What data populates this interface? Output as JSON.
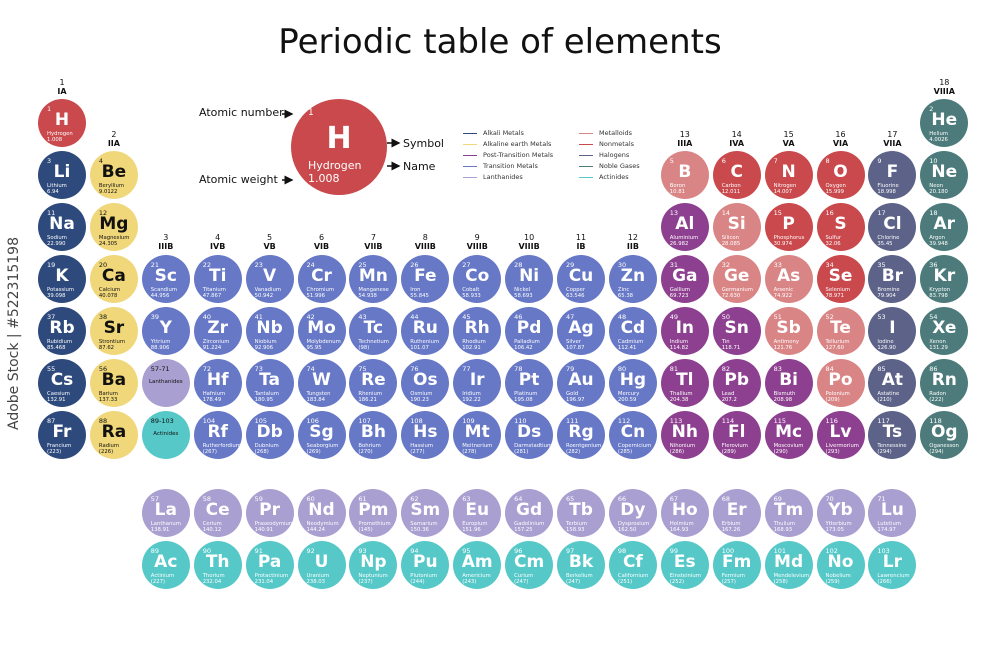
{
  "title": "Periodic table of elements",
  "watermark": "Adobe Stock | #522315198",
  "colors": {
    "alkali": "#2e4a7d",
    "alkaline": "#f0d77a",
    "post": "#8e4090",
    "transition": "#6678c6",
    "lanthanide": "#a99fd0",
    "actinide": "#56c8c8",
    "metalloid": "#da8585",
    "nonmetal": "#c9494d",
    "halogen": "#5c6288",
    "noble": "#4d7b7b"
  },
  "key": {
    "atomic_number_label": "Atomic number",
    "atomic_weight_label": "Atomic weight",
    "symbol_label": "Symbol",
    "name_label": "Name",
    "number": "1",
    "symbol": "H",
    "name": "Hydrogen",
    "weight": "1.008"
  },
  "legend": [
    {
      "label": "Alkali Metals",
      "color": "#2e4a7d"
    },
    {
      "label": "Alkaline earth Metals",
      "color": "#f0d77a"
    },
    {
      "label": "Post-Transition Metals",
      "color": "#8e4090"
    },
    {
      "label": "Transition Metals",
      "color": "#6678c6"
    },
    {
      "label": "Lanthanides",
      "color": "#a99fd0"
    },
    {
      "label": "Metalloids",
      "color": "#da8585"
    },
    {
      "label": "Nonmetals",
      "color": "#c9494d"
    },
    {
      "label": "Halogens",
      "color": "#5c6288"
    },
    {
      "label": "Noble Gases",
      "color": "#4d7b7b"
    },
    {
      "label": "Actinides",
      "color": "#56c8c8"
    }
  ],
  "groups": [
    {
      "num": "1",
      "roman": "IA"
    },
    {
      "num": "2",
      "roman": "IIA"
    },
    {
      "num": "3",
      "roman": "IIIB"
    },
    {
      "num": "4",
      "roman": "IVB"
    },
    {
      "num": "5",
      "roman": "VB"
    },
    {
      "num": "6",
      "roman": "VIB"
    },
    {
      "num": "7",
      "roman": "VIIB"
    },
    {
      "num": "8",
      "roman": "VIIIB"
    },
    {
      "num": "9",
      "roman": "VIIIB"
    },
    {
      "num": "10",
      "roman": "VIIIB"
    },
    {
      "num": "11",
      "roman": "IB"
    },
    {
      "num": "12",
      "roman": "IIB"
    },
    {
      "num": "13",
      "roman": "IIIA"
    },
    {
      "num": "14",
      "roman": "IVA"
    },
    {
      "num": "15",
      "roman": "VA"
    },
    {
      "num": "16",
      "roman": "VIA"
    },
    {
      "num": "17",
      "roman": "VIIA"
    },
    {
      "num": "18",
      "roman": "VIIIA"
    }
  ],
  "elements": [
    {
      "n": "1",
      "s": "H",
      "name": "Hydrogen",
      "w": "1.008",
      "c": "nonmetal",
      "g": 1,
      "p": 1
    },
    {
      "n": "2",
      "s": "He",
      "name": "Helium",
      "w": "4.0026",
      "c": "noble",
      "g": 18,
      "p": 1
    },
    {
      "n": "3",
      "s": "Li",
      "name": "Lithium",
      "w": "6.94",
      "c": "alkali",
      "g": 1,
      "p": 2
    },
    {
      "n": "4",
      "s": "Be",
      "name": "Beryllium",
      "w": "9.0122",
      "c": "alkaline",
      "g": 2,
      "p": 2
    },
    {
      "n": "5",
      "s": "B",
      "name": "Boron",
      "w": "10.81",
      "c": "metalloid",
      "g": 13,
      "p": 2
    },
    {
      "n": "6",
      "s": "C",
      "name": "Carbon",
      "w": "12.011",
      "c": "nonmetal",
      "g": 14,
      "p": 2
    },
    {
      "n": "7",
      "s": "N",
      "name": "Nitrogen",
      "w": "14.007",
      "c": "nonmetal",
      "g": 15,
      "p": 2
    },
    {
      "n": "8",
      "s": "O",
      "name": "Oxygen",
      "w": "15.999",
      "c": "nonmetal",
      "g": 16,
      "p": 2
    },
    {
      "n": "9",
      "s": "F",
      "name": "Fluorine",
      "w": "18.998",
      "c": "halogen",
      "g": 17,
      "p": 2
    },
    {
      "n": "10",
      "s": "Ne",
      "name": "Neon",
      "w": "20.180",
      "c": "noble",
      "g": 18,
      "p": 2
    },
    {
      "n": "11",
      "s": "Na",
      "name": "Sodium",
      "w": "22.990",
      "c": "alkali",
      "g": 1,
      "p": 3
    },
    {
      "n": "12",
      "s": "Mg",
      "name": "Magnesium",
      "w": "24.305",
      "c": "alkaline",
      "g": 2,
      "p": 3
    },
    {
      "n": "13",
      "s": "Al",
      "name": "Aluminium",
      "w": "26.982",
      "c": "post",
      "g": 13,
      "p": 3
    },
    {
      "n": "14",
      "s": "Si",
      "name": "Silicon",
      "w": "28.085",
      "c": "metalloid",
      "g": 14,
      "p": 3
    },
    {
      "n": "15",
      "s": "P",
      "name": "Phosphorus",
      "w": "30.974",
      "c": "nonmetal",
      "g": 15,
      "p": 3
    },
    {
      "n": "16",
      "s": "S",
      "name": "Sulfur",
      "w": "32.06",
      "c": "nonmetal",
      "g": 16,
      "p": 3
    },
    {
      "n": "17",
      "s": "Cl",
      "name": "Chlorine",
      "w": "35.45",
      "c": "halogen",
      "g": 17,
      "p": 3
    },
    {
      "n": "18",
      "s": "Ar",
      "name": "Argon",
      "w": "39.948",
      "c": "noble",
      "g": 18,
      "p": 3
    },
    {
      "n": "19",
      "s": "K",
      "name": "Potassium",
      "w": "39.098",
      "c": "alkali",
      "g": 1,
      "p": 4
    },
    {
      "n": "20",
      "s": "Ca",
      "name": "Calcium",
      "w": "40.078",
      "c": "alkaline",
      "g": 2,
      "p": 4
    },
    {
      "n": "21",
      "s": "Sc",
      "name": "Scandium",
      "w": "44.956",
      "c": "transition",
      "g": 3,
      "p": 4
    },
    {
      "n": "22",
      "s": "Ti",
      "name": "Titanium",
      "w": "47.867",
      "c": "transition",
      "g": 4,
      "p": 4
    },
    {
      "n": "23",
      "s": "V",
      "name": "Vanadium",
      "w": "50.942",
      "c": "transition",
      "g": 5,
      "p": 4
    },
    {
      "n": "24",
      "s": "Cr",
      "name": "Chromium",
      "w": "51.996",
      "c": "transition",
      "g": 6,
      "p": 4
    },
    {
      "n": "25",
      "s": "Mn",
      "name": "Manganese",
      "w": "54.938",
      "c": "transition",
      "g": 7,
      "p": 4
    },
    {
      "n": "26",
      "s": "Fe",
      "name": "Iron",
      "w": "55.845",
      "c": "transition",
      "g": 8,
      "p": 4
    },
    {
      "n": "27",
      "s": "Co",
      "name": "Cobalt",
      "w": "58.933",
      "c": "transition",
      "g": 9,
      "p": 4
    },
    {
      "n": "28",
      "s": "Ni",
      "name": "Nickel",
      "w": "58.693",
      "c": "transition",
      "g": 10,
      "p": 4
    },
    {
      "n": "29",
      "s": "Cu",
      "name": "Copper",
      "w": "63.546",
      "c": "transition",
      "g": 11,
      "p": 4
    },
    {
      "n": "30",
      "s": "Zn",
      "name": "Zinc",
      "w": "65.38",
      "c": "transition",
      "g": 12,
      "p": 4
    },
    {
      "n": "31",
      "s": "Ga",
      "name": "Gallium",
      "w": "69.723",
      "c": "post",
      "g": 13,
      "p": 4
    },
    {
      "n": "32",
      "s": "Ge",
      "name": "Germanium",
      "w": "72.630",
      "c": "metalloid",
      "g": 14,
      "p": 4
    },
    {
      "n": "33",
      "s": "As",
      "name": "Arsenic",
      "w": "74.922",
      "c": "metalloid",
      "g": 15,
      "p": 4
    },
    {
      "n": "34",
      "s": "Se",
      "name": "Selenium",
      "w": "78.971",
      "c": "nonmetal",
      "g": 16,
      "p": 4
    },
    {
      "n": "35",
      "s": "Br",
      "name": "Bromine",
      "w": "79.904",
      "c": "halogen",
      "g": 17,
      "p": 4
    },
    {
      "n": "36",
      "s": "Kr",
      "name": "Krypton",
      "w": "83.798",
      "c": "noble",
      "g": 18,
      "p": 4
    },
    {
      "n": "37",
      "s": "Rb",
      "name": "Rubidium",
      "w": "85.468",
      "c": "alkali",
      "g": 1,
      "p": 5
    },
    {
      "n": "38",
      "s": "Sr",
      "name": "Strontium",
      "w": "87.62",
      "c": "alkaline",
      "g": 2,
      "p": 5
    },
    {
      "n": "39",
      "s": "Y",
      "name": "Yttrium",
      "w": "88.906",
      "c": "transition",
      "g": 3,
      "p": 5
    },
    {
      "n": "40",
      "s": "Zr",
      "name": "Zirconium",
      "w": "91.224",
      "c": "transition",
      "g": 4,
      "p": 5
    },
    {
      "n": "41",
      "s": "Nb",
      "name": "Niobium",
      "w": "92.906",
      "c": "transition",
      "g": 5,
      "p": 5
    },
    {
      "n": "42",
      "s": "Mo",
      "name": "Molybdenum",
      "w": "95.95",
      "c": "transition",
      "g": 6,
      "p": 5
    },
    {
      "n": "43",
      "s": "Tc",
      "name": "Technetium",
      "w": "(98)",
      "c": "transition",
      "g": 7,
      "p": 5
    },
    {
      "n": "44",
      "s": "Ru",
      "name": "Ruthenium",
      "w": "101.07",
      "c": "transition",
      "g": 8,
      "p": 5
    },
    {
      "n": "45",
      "s": "Rh",
      "name": "Rhodium",
      "w": "102.91",
      "c": "transition",
      "g": 9,
      "p": 5
    },
    {
      "n": "46",
      "s": "Pd",
      "name": "Palladium",
      "w": "106.42",
      "c": "transition",
      "g": 10,
      "p": 5
    },
    {
      "n": "47",
      "s": "Ag",
      "name": "Silver",
      "w": "107.87",
      "c": "transition",
      "g": 11,
      "p": 5
    },
    {
      "n": "48",
      "s": "Cd",
      "name": "Cadmium",
      "w": "112.41",
      "c": "transition",
      "g": 12,
      "p": 5
    },
    {
      "n": "49",
      "s": "In",
      "name": "Indium",
      "w": "114.82",
      "c": "post",
      "g": 13,
      "p": 5
    },
    {
      "n": "50",
      "s": "Sn",
      "name": "Tin",
      "w": "118.71",
      "c": "post",
      "g": 14,
      "p": 5
    },
    {
      "n": "51",
      "s": "Sb",
      "name": "Antimony",
      "w": "121.76",
      "c": "metalloid",
      "g": 15,
      "p": 5
    },
    {
      "n": "52",
      "s": "Te",
      "name": "Tellurium",
      "w": "127.60",
      "c": "metalloid",
      "g": 16,
      "p": 5
    },
    {
      "n": "53",
      "s": "I",
      "name": "Iodine",
      "w": "126.90",
      "c": "halogen",
      "g": 17,
      "p": 5
    },
    {
      "n": "54",
      "s": "Xe",
      "name": "Xenon",
      "w": "131.29",
      "c": "noble",
      "g": 18,
      "p": 5
    },
    {
      "n": "55",
      "s": "Cs",
      "name": "Caesium",
      "w": "132.91",
      "c": "alkali",
      "g": 1,
      "p": 6
    },
    {
      "n": "56",
      "s": "Ba",
      "name": "Barium",
      "w": "137.33",
      "c": "alkaline",
      "g": 2,
      "p": 6
    },
    {
      "n": "57-71",
      "s": "",
      "name": "Lanthanides",
      "w": "",
      "c": "lanthanide",
      "g": 3,
      "p": 6,
      "note": true
    },
    {
      "n": "72",
      "s": "Hf",
      "name": "Hafnium",
      "w": "178.49",
      "c": "transition",
      "g": 4,
      "p": 6
    },
    {
      "n": "73",
      "s": "Ta",
      "name": "Tantalum",
      "w": "180.95",
      "c": "transition",
      "g": 5,
      "p": 6
    },
    {
      "n": "74",
      "s": "W",
      "name": "Tungsten",
      "w": "183.84",
      "c": "transition",
      "g": 6,
      "p": 6
    },
    {
      "n": "75",
      "s": "Re",
      "name": "Rhenium",
      "w": "186.21",
      "c": "transition",
      "g": 7,
      "p": 6
    },
    {
      "n": "76",
      "s": "Os",
      "name": "Osmium",
      "w": "190.23",
      "c": "transition",
      "g": 8,
      "p": 6
    },
    {
      "n": "77",
      "s": "Ir",
      "name": "Iridium",
      "w": "192.22",
      "c": "transition",
      "g": 9,
      "p": 6
    },
    {
      "n": "78",
      "s": "Pt",
      "name": "Platinum",
      "w": "195.08",
      "c": "transition",
      "g": 10,
      "p": 6
    },
    {
      "n": "79",
      "s": "Au",
      "name": "Gold",
      "w": "196.97",
      "c": "transition",
      "g": 11,
      "p": 6
    },
    {
      "n": "80",
      "s": "Hg",
      "name": "Mercury",
      "w": "200.59",
      "c": "transition",
      "g": 12,
      "p": 6
    },
    {
      "n": "81",
      "s": "Tl",
      "name": "Thallium",
      "w": "204.38",
      "c": "post",
      "g": 13,
      "p": 6
    },
    {
      "n": "82",
      "s": "Pb",
      "name": "Lead",
      "w": "207.2",
      "c": "post",
      "g": 14,
      "p": 6
    },
    {
      "n": "83",
      "s": "Bi",
      "name": "Bismuth",
      "w": "208.98",
      "c": "post",
      "g": 15,
      "p": 6
    },
    {
      "n": "84",
      "s": "Po",
      "name": "Polonium",
      "w": "(209)",
      "c": "metalloid",
      "g": 16,
      "p": 6
    },
    {
      "n": "85",
      "s": "At",
      "name": "Astatine",
      "w": "(210)",
      "c": "halogen",
      "g": 17,
      "p": 6
    },
    {
      "n": "86",
      "s": "Rn",
      "name": "Radon",
      "w": "(222)",
      "c": "noble",
      "g": 18,
      "p": 6
    },
    {
      "n": "87",
      "s": "Fr",
      "name": "Francium",
      "w": "(223)",
      "c": "alkali",
      "g": 1,
      "p": 7
    },
    {
      "n": "88",
      "s": "Ra",
      "name": "Radium",
      "w": "(226)",
      "c": "alkaline",
      "g": 2,
      "p": 7
    },
    {
      "n": "89-103",
      "s": "",
      "name": "Actinides",
      "w": "",
      "c": "actinide",
      "g": 3,
      "p": 7,
      "note": true
    },
    {
      "n": "104",
      "s": "Rf",
      "name": "Rutherfordium",
      "w": "(267)",
      "c": "transition",
      "g": 4,
      "p": 7
    },
    {
      "n": "105",
      "s": "Db",
      "name": "Dubnium",
      "w": "(268)",
      "c": "transition",
      "g": 5,
      "p": 7
    },
    {
      "n": "106",
      "s": "Sg",
      "name": "Seaborgium",
      "w": "(269)",
      "c": "transition",
      "g": 6,
      "p": 7
    },
    {
      "n": "107",
      "s": "Bh",
      "name": "Bohrium",
      "w": "(270)",
      "c": "transition",
      "g": 7,
      "p": 7
    },
    {
      "n": "108",
      "s": "Hs",
      "name": "Hassium",
      "w": "(277)",
      "c": "transition",
      "g": 8,
      "p": 7
    },
    {
      "n": "109",
      "s": "Mt",
      "name": "Meitnerium",
      "w": "(278)",
      "c": "transition",
      "g": 9,
      "p": 7
    },
    {
      "n": "110",
      "s": "Ds",
      "name": "Darmstadtium",
      "w": "(281)",
      "c": "transition",
      "g": 10,
      "p": 7
    },
    {
      "n": "111",
      "s": "Rg",
      "name": "Roentgenium",
      "w": "(282)",
      "c": "transition",
      "g": 11,
      "p": 7
    },
    {
      "n": "112",
      "s": "Cn",
      "name": "Copernicium",
      "w": "(285)",
      "c": "transition",
      "g": 12,
      "p": 7
    },
    {
      "n": "113",
      "s": "Nh",
      "name": "Nihonium",
      "w": "(286)",
      "c": "post",
      "g": 13,
      "p": 7
    },
    {
      "n": "114",
      "s": "Fl",
      "name": "Flerovium",
      "w": "(289)",
      "c": "post",
      "g": 14,
      "p": 7
    },
    {
      "n": "115",
      "s": "Mc",
      "name": "Moscovium",
      "w": "(290)",
      "c": "post",
      "g": 15,
      "p": 7
    },
    {
      "n": "116",
      "s": "Lv",
      "name": "Livermorium",
      "w": "(293)",
      "c": "post",
      "g": 16,
      "p": 7
    },
    {
      "n": "117",
      "s": "Ts",
      "name": "Tennessine",
      "w": "(294)",
      "c": "halogen",
      "g": 17,
      "p": 7
    },
    {
      "n": "118",
      "s": "Og",
      "name": "Oganesson",
      "w": "(294)",
      "c": "noble",
      "g": 18,
      "p": 7
    },
    {
      "n": "57",
      "s": "La",
      "name": "Lanthanum",
      "w": "138.91",
      "c": "lanthanide",
      "g": 3,
      "p": 8
    },
    {
      "n": "58",
      "s": "Ce",
      "name": "Cerium",
      "w": "140.12",
      "c": "lanthanide",
      "g": 4,
      "p": 8
    },
    {
      "n": "59",
      "s": "Pr",
      "name": "Praseodymium",
      "w": "140.91",
      "c": "lanthanide",
      "g": 5,
      "p": 8
    },
    {
      "n": "60",
      "s": "Nd",
      "name": "Neodymium",
      "w": "144.24",
      "c": "lanthanide",
      "g": 6,
      "p": 8
    },
    {
      "n": "61",
      "s": "Pm",
      "name": "Promethium",
      "w": "(145)",
      "c": "lanthanide",
      "g": 7,
      "p": 8
    },
    {
      "n": "62",
      "s": "Sm",
      "name": "Samarium",
      "w": "150.36",
      "c": "lanthanide",
      "g": 8,
      "p": 8
    },
    {
      "n": "63",
      "s": "Eu",
      "name": "Europium",
      "w": "151.96",
      "c": "lanthanide",
      "g": 9,
      "p": 8
    },
    {
      "n": "64",
      "s": "Gd",
      "name": "Gadolinium",
      "w": "157.25",
      "c": "lanthanide",
      "g": 10,
      "p": 8
    },
    {
      "n": "65",
      "s": "Tb",
      "name": "Terbium",
      "w": "158.93",
      "c": "lanthanide",
      "g": 11,
      "p": 8
    },
    {
      "n": "66",
      "s": "Dy",
      "name": "Dysprosium",
      "w": "162.50",
      "c": "lanthanide",
      "g": 12,
      "p": 8
    },
    {
      "n": "67",
      "s": "Ho",
      "name": "Holmium",
      "w": "164.93",
      "c": "lanthanide",
      "g": 13,
      "p": 8
    },
    {
      "n": "68",
      "s": "Er",
      "name": "Erbium",
      "w": "167.26",
      "c": "lanthanide",
      "g": 14,
      "p": 8
    },
    {
      "n": "69",
      "s": "Tm",
      "name": "Thulium",
      "w": "168.93",
      "c": "lanthanide",
      "g": 15,
      "p": 8
    },
    {
      "n": "70",
      "s": "Yb",
      "name": "Ytterbium",
      "w": "173.05",
      "c": "lanthanide",
      "g": 16,
      "p": 8
    },
    {
      "n": "71",
      "s": "Lu",
      "name": "Lutetium",
      "w": "174.97",
      "c": "lanthanide",
      "g": 17,
      "p": 8
    },
    {
      "n": "89",
      "s": "Ac",
      "name": "Actinium",
      "w": "(227)",
      "c": "actinide",
      "g": 3,
      "p": 9
    },
    {
      "n": "90",
      "s": "Th",
      "name": "Thorium",
      "w": "232.04",
      "c": "actinide",
      "g": 4,
      "p": 9
    },
    {
      "n": "91",
      "s": "Pa",
      "name": "Protactinium",
      "w": "231.04",
      "c": "actinide",
      "g": 5,
      "p": 9
    },
    {
      "n": "92",
      "s": "U",
      "name": "Uranium",
      "w": "238.03",
      "c": "actinide",
      "g": 6,
      "p": 9
    },
    {
      "n": "93",
      "s": "Np",
      "name": "Neptunium",
      "w": "(237)",
      "c": "actinide",
      "g": 7,
      "p": 9
    },
    {
      "n": "94",
      "s": "Pu",
      "name": "Plutonium",
      "w": "(244)",
      "c": "actinide",
      "g": 8,
      "p": 9
    },
    {
      "n": "95",
      "s": "Am",
      "name": "Americium",
      "w": "(243)",
      "c": "actinide",
      "g": 9,
      "p": 9
    },
    {
      "n": "96",
      "s": "Cm",
      "name": "Curium",
      "w": "(247)",
      "c": "actinide",
      "g": 10,
      "p": 9
    },
    {
      "n": "97",
      "s": "Bk",
      "name": "Berkelium",
      "w": "(247)",
      "c": "actinide",
      "g": 11,
      "p": 9
    },
    {
      "n": "98",
      "s": "Cf",
      "name": "Californium",
      "w": "(251)",
      "c": "actinide",
      "g": 12,
      "p": 9
    },
    {
      "n": "99",
      "s": "Es",
      "name": "Einsteinium",
      "w": "(252)",
      "c": "actinide",
      "g": 13,
      "p": 9
    },
    {
      "n": "100",
      "s": "Fm",
      "name": "Fermium",
      "w": "(257)",
      "c": "actinide",
      "g": 14,
      "p": 9
    },
    {
      "n": "101",
      "s": "Md",
      "name": "Mendelevium",
      "w": "(258)",
      "c": "actinide",
      "g": 15,
      "p": 9
    },
    {
      "n": "102",
      "s": "No",
      "name": "Nobelium",
      "w": "(259)",
      "c": "actinide",
      "g": 16,
      "p": 9
    },
    {
      "n": "103",
      "s": "Lr",
      "name": "Lawrencium",
      "w": "(266)",
      "c": "actinide",
      "g": 17,
      "p": 9
    }
  ]
}
